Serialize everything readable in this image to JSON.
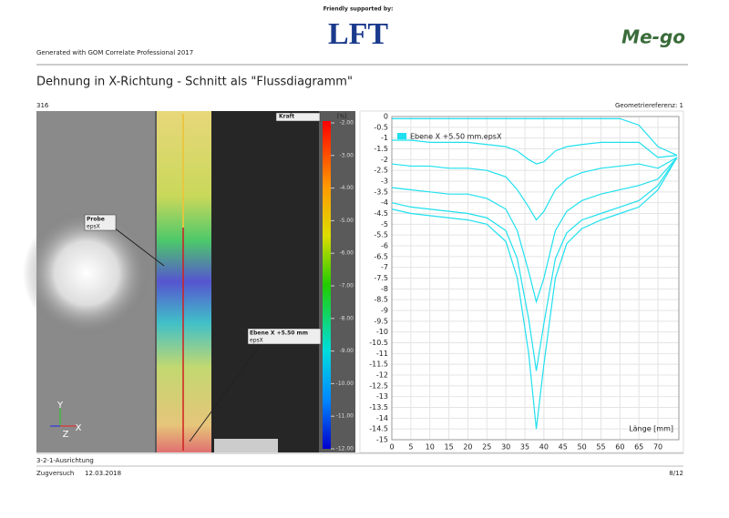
{
  "header": {
    "sponsor": "Friendly supported by:",
    "sponsor_logo": "LFT",
    "brand_logo": "Me-go",
    "generator": "Generated with GOM Correlate Professional 2017"
  },
  "title": "Dehnung in X-Richtung - Schnitt als \"Flussdiagramm\"",
  "stage": "316",
  "geometry_reference": "Geometriereferenz: 1",
  "image_panel": {
    "labels": [
      {
        "title": "Kraft"
      },
      {
        "title": "Probe",
        "subtitle": "epsX"
      },
      {
        "title": "Ebene X +5.50 mm",
        "subtitle": "epsX"
      }
    ],
    "axes": [
      "Y",
      "Z",
      "X"
    ],
    "colorbar": {
      "unit": "[%]",
      "ticks": [
        {
          "value": -2,
          "label": "-2.00"
        },
        {
          "value": -3,
          "label": "-3.00"
        },
        {
          "value": -4,
          "label": "-4.00"
        },
        {
          "value": -5,
          "label": "-5.00"
        },
        {
          "value": -6,
          "label": "-6.00"
        },
        {
          "value": -7,
          "label": "-7.00"
        },
        {
          "value": -8,
          "label": "-8.00"
        },
        {
          "value": -9,
          "label": "-9.00"
        },
        {
          "value": -10,
          "label": "-10.00"
        },
        {
          "value": -11,
          "label": "-11.00"
        },
        {
          "value": -12,
          "label": "-12.00"
        }
      ]
    }
  },
  "chart_data": {
    "type": "line",
    "xlabel": "Länge [mm]",
    "grid": true,
    "legend": "upper left",
    "xlim": [
      0,
      75.5
    ],
    "ylim": [
      -15,
      0
    ],
    "xticks": [
      0,
      5,
      10,
      15,
      20,
      25,
      30,
      35,
      40,
      45,
      50,
      55,
      60,
      65,
      70
    ],
    "yticks": [
      0,
      -0.5,
      -1,
      -1.5,
      -2,
      -2.5,
      -3,
      -3.5,
      -4,
      -4.5,
      -5,
      -5.5,
      -6,
      -6.5,
      -7,
      -7.5,
      -8,
      -8.5,
      -9,
      -9.5,
      -10,
      -10.5,
      -11,
      -11.5,
      -12,
      -12.5,
      -13,
      -13.5,
      -14,
      -14.5,
      -15
    ],
    "x": [
      0,
      5,
      10,
      15,
      20,
      25,
      30,
      33,
      36,
      38,
      40,
      43,
      46,
      50,
      55,
      60,
      65,
      70,
      75
    ],
    "series": [
      {
        "name": "Ebene X +5.50 mm.epsX",
        "color": "#1fe0ee",
        "curves": [
          [
            -0.1,
            -0.1,
            -0.1,
            -0.1,
            -0.1,
            -0.1,
            -0.1,
            -0.1,
            -0.1,
            -0.1,
            -0.1,
            -0.1,
            -0.1,
            -0.1,
            -0.1,
            -0.1,
            -0.4,
            -1.4,
            -1.8
          ],
          [
            -1.1,
            -1.1,
            -1.2,
            -1.2,
            -1.2,
            -1.3,
            -1.4,
            -1.6,
            -2.0,
            -2.2,
            -2.1,
            -1.6,
            -1.4,
            -1.3,
            -1.2,
            -1.2,
            -1.2,
            -1.9,
            -1.8
          ],
          [
            -2.2,
            -2.3,
            -2.3,
            -2.4,
            -2.4,
            -2.5,
            -2.8,
            -3.4,
            -4.2,
            -4.8,
            -4.4,
            -3.4,
            -2.9,
            -2.6,
            -2.4,
            -2.3,
            -2.2,
            -2.4,
            -1.9
          ],
          [
            -3.3,
            -3.4,
            -3.5,
            -3.6,
            -3.6,
            -3.8,
            -4.3,
            -5.3,
            -7.2,
            -8.6,
            -7.5,
            -5.3,
            -4.4,
            -3.9,
            -3.6,
            -3.4,
            -3.2,
            -2.9,
            -1.9
          ],
          [
            -4.0,
            -4.2,
            -4.3,
            -4.4,
            -4.5,
            -4.7,
            -5.3,
            -6.6,
            -9.4,
            -11.8,
            -9.6,
            -6.6,
            -5.4,
            -4.8,
            -4.5,
            -4.2,
            -3.9,
            -3.2,
            -1.9
          ],
          [
            -4.3,
            -4.5,
            -4.6,
            -4.7,
            -4.8,
            -5.0,
            -5.8,
            -7.5,
            -11,
            -14.5,
            -11.5,
            -7.5,
            -5.9,
            -5.2,
            -4.8,
            -4.5,
            -4.2,
            -3.4,
            -1.9
          ]
        ]
      }
    ]
  },
  "footer": {
    "alignment": "3-2-1-Ausrichtung",
    "project": "Zugversuch",
    "date": "12.03.2018",
    "page": "8/12"
  }
}
